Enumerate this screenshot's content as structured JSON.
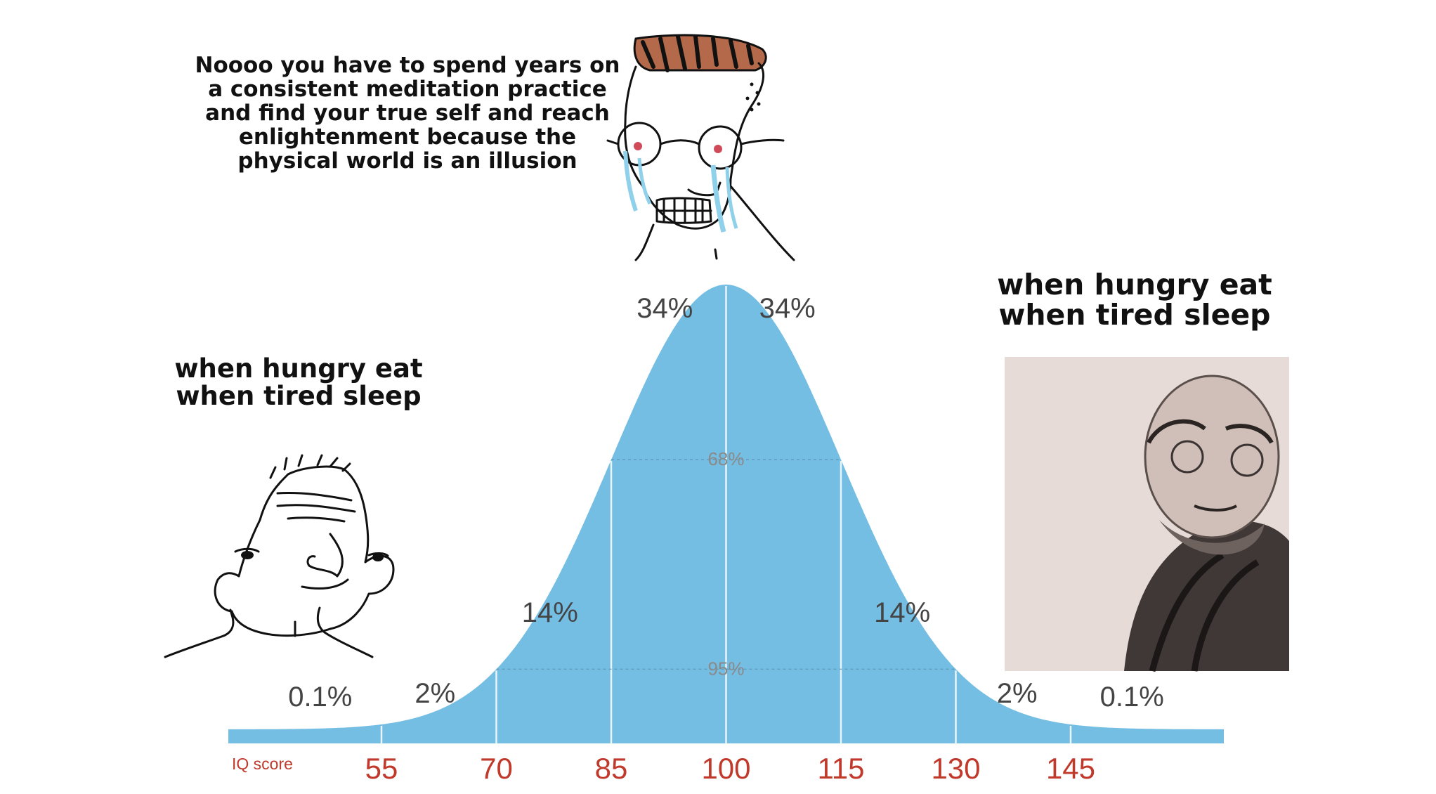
{
  "captions": {
    "middle": [
      "Noooo you have to spend years on",
      "a consistent meditation practice",
      "and find your true self and reach",
      "enlightenment because the",
      "physical world is an illusion"
    ],
    "left": [
      "when hungry eat",
      "when tired sleep"
    ],
    "right": [
      "when hungry eat",
      "when tired sleep"
    ]
  },
  "characters": {
    "left": "wojak-simple-face",
    "middle": "crying-wojak-glasses",
    "right": "zen-monk-painting"
  },
  "chart_data": {
    "type": "area",
    "distribution": "normal",
    "mean": 100,
    "sd": 15,
    "xlabel": "IQ score",
    "xlim": [
      35,
      165
    ],
    "ticks": [
      55,
      70,
      85,
      100,
      115,
      130,
      145
    ],
    "band_labels": [
      {
        "text": "0.1%",
        "x": 47
      },
      {
        "text": "2%",
        "x": 62
      },
      {
        "text": "14%",
        "x": 77
      },
      {
        "text": "34%",
        "x": 92
      },
      {
        "text": "34%",
        "x": 108
      },
      {
        "text": "14%",
        "x": 123
      },
      {
        "text": "2%",
        "x": 138
      },
      {
        "text": "0.1%",
        "x": 153
      }
    ],
    "range_labels": [
      {
        "text": "68%",
        "from": 85,
        "to": 115
      },
      {
        "text": "95%",
        "from": 70,
        "to": 130
      }
    ],
    "colors": {
      "fill": "#74bde3",
      "tick_label": "#c0392b",
      "band_label": "#444444",
      "range_label": "#8a8a8a"
    }
  }
}
